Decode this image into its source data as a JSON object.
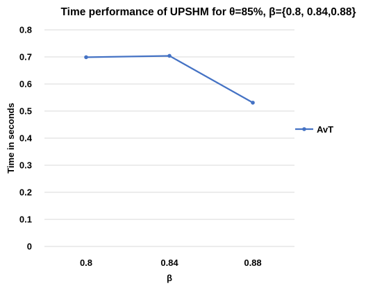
{
  "chart_data": {
    "type": "line",
    "title": "Time performance of UPSHM for θ=85%, β={0.8, 0.84,0.88}",
    "xlabel": "β",
    "ylabel": "Time in seconds",
    "categories": [
      "0.8",
      "0.84",
      "0.88"
    ],
    "series": [
      {
        "name": "AvT",
        "values": [
          0.699,
          0.704,
          0.531
        ],
        "color": "#4472c4"
      }
    ],
    "ylim": [
      0,
      0.8
    ],
    "yticks": [
      "0",
      "0.1",
      "0.2",
      "0.3",
      "0.4",
      "0.5",
      "0.6",
      "0.7",
      "0.8"
    ],
    "grid": true,
    "legend": "right"
  }
}
